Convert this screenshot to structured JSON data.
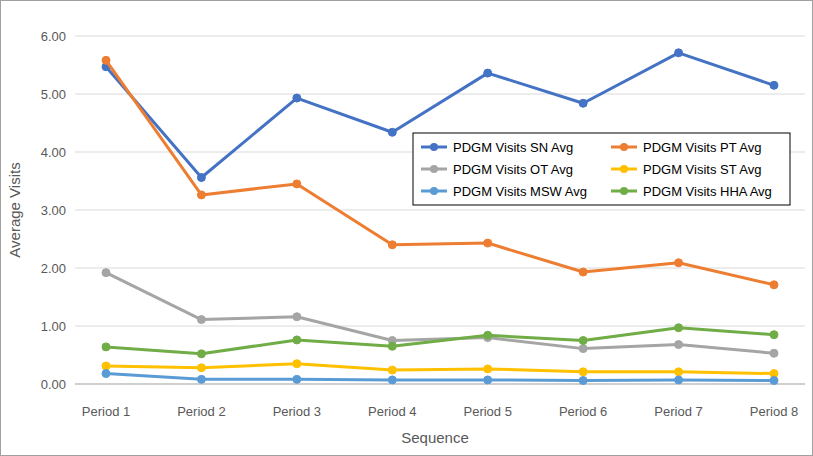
{
  "chart_data": {
    "type": "line",
    "x_label": "Sequence",
    "y_label": "Average Visits",
    "categories": [
      "Period 1",
      "Period 2",
      "Period 3",
      "Period 4",
      "Period 5",
      "Period 6",
      "Period 7",
      "Period 8"
    ],
    "series": [
      {
        "name": "PDGM Visits SN Avg",
        "color": "#4472c4",
        "marker": "circle",
        "values": [
          5.47,
          3.56,
          4.93,
          4.34,
          5.36,
          4.84,
          5.71,
          5.15
        ]
      },
      {
        "name": "PDGM Visits PT Avg",
        "color": "#ed7d31",
        "marker": "circle",
        "values": [
          5.58,
          3.26,
          3.45,
          2.4,
          2.43,
          1.93,
          2.09,
          1.71
        ]
      },
      {
        "name": "PDGM Visits OT Avg",
        "color": "#a5a5a5",
        "marker": "circle",
        "values": [
          1.92,
          1.11,
          1.16,
          0.75,
          0.8,
          0.61,
          0.68,
          0.53
        ]
      },
      {
        "name": "PDGM Visits ST Avg",
        "color": "#ffc000",
        "marker": "circle",
        "values": [
          0.31,
          0.28,
          0.35,
          0.24,
          0.26,
          0.21,
          0.21,
          0.18
        ]
      },
      {
        "name": "PDGM Visits MSW Avg",
        "color": "#5b9bd5",
        "marker": "circle",
        "values": [
          0.18,
          0.08,
          0.08,
          0.07,
          0.07,
          0.06,
          0.07,
          0.06
        ]
      },
      {
        "name": "PDGM Visits HHA Avg",
        "color": "#70ad47",
        "marker": "circle",
        "values": [
          0.64,
          0.52,
          0.76,
          0.65,
          0.84,
          0.75,
          0.97,
          0.85
        ]
      }
    ],
    "ylim": [
      0,
      6
    ],
    "yticks": [
      {
        "value": 0,
        "label": "0.00"
      },
      {
        "value": 1,
        "label": "1.00"
      },
      {
        "value": 2,
        "label": "2.00"
      },
      {
        "value": 3,
        "label": "3.00"
      },
      {
        "value": 4,
        "label": "4.00"
      },
      {
        "value": 5,
        "label": "5.00"
      },
      {
        "value": 6,
        "label": "6.00"
      }
    ],
    "grid": true,
    "legend": "right"
  }
}
